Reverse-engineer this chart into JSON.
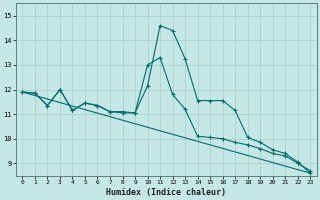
{
  "xlabel": "Humidex (Indice chaleur)",
  "bg_color": "#c5e8e6",
  "grid_color": "#aacfcc",
  "line_color": "#006b6b",
  "xlim": [
    -0.5,
    23.5
  ],
  "ylim": [
    8.5,
    15.5
  ],
  "xticks": [
    0,
    1,
    2,
    3,
    4,
    5,
    6,
    7,
    8,
    9,
    10,
    11,
    12,
    13,
    14,
    15,
    16,
    17,
    18,
    19,
    20,
    21,
    22,
    23
  ],
  "yticks": [
    9,
    10,
    11,
    12,
    13,
    14,
    15
  ],
  "line1_x": [
    0,
    1,
    2,
    3,
    4,
    5,
    6,
    7,
    8,
    9,
    10,
    11,
    12,
    13,
    14,
    15,
    16,
    17,
    18,
    19,
    20,
    21,
    22,
    23
  ],
  "line1_y": [
    11.9,
    11.85,
    11.35,
    12.0,
    11.15,
    11.45,
    11.35,
    11.1,
    11.1,
    11.05,
    12.15,
    14.6,
    14.4,
    13.25,
    11.55,
    11.55,
    11.55,
    11.15,
    10.05,
    9.85,
    9.55,
    9.4,
    9.05,
    8.6
  ],
  "line2_x": [
    0,
    1,
    2,
    3,
    4,
    5,
    6,
    7,
    8,
    9,
    10,
    11,
    12,
    13,
    14,
    15,
    16,
    17,
    18,
    19,
    20,
    21,
    22,
    23
  ],
  "line2_y": [
    11.9,
    11.85,
    11.35,
    12.0,
    11.15,
    11.45,
    11.35,
    11.1,
    11.05,
    11.05,
    13.0,
    13.3,
    11.8,
    11.2,
    10.1,
    10.05,
    10.0,
    9.85,
    9.75,
    9.6,
    9.4,
    9.3,
    9.0,
    8.7
  ],
  "line3_x": [
    0,
    23
  ],
  "line3_y": [
    11.9,
    8.6
  ]
}
